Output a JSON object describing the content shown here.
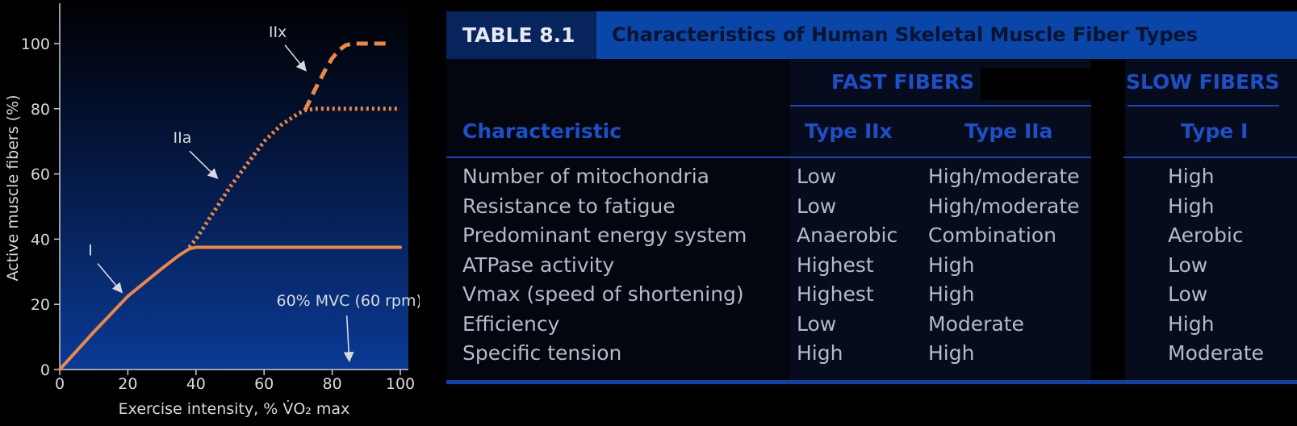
{
  "chart_data": {
    "type": "line",
    "xlabel": "Exercise intensity, % V̇O₂ max",
    "ylabel": "Active muscle fibers (%)",
    "xlim": [
      0,
      100
    ],
    "ylim": [
      0,
      100
    ],
    "x_ticks": [
      "0",
      "20",
      "40",
      "60",
      "80",
      "100"
    ],
    "y_ticks": [
      "0",
      "20",
      "40",
      "60",
      "80",
      "100"
    ],
    "grid": false,
    "series": [
      {
        "name": "I",
        "style": "solid",
        "x": [
          0,
          10,
          20,
          30,
          35,
          38,
          40,
          60,
          80,
          100
        ],
        "y": [
          0,
          11.5,
          22.5,
          31,
          35,
          37,
          37.5,
          37.5,
          37.5,
          37.5
        ]
      },
      {
        "name": "IIa",
        "style": "dotted",
        "x": [
          38,
          40,
          45,
          50,
          55,
          60,
          65,
          70,
          72,
          75,
          80,
          85,
          90,
          95,
          100
        ],
        "y": [
          37.5,
          40,
          48,
          56,
          63,
          70,
          75,
          78.5,
          79.5,
          80,
          80,
          80,
          80,
          80,
          80
        ]
      },
      {
        "name": "IIx",
        "style": "dashed",
        "x": [
          72,
          75,
          78,
          80,
          82,
          84,
          86,
          90,
          95,
          97
        ],
        "y": [
          79.5,
          86,
          92,
          95.5,
          98,
          99.5,
          100,
          100,
          100,
          100
        ]
      }
    ],
    "annotations": [
      {
        "text": "I",
        "x": 9,
        "y": 35,
        "arrow_to": [
          18,
          24
        ]
      },
      {
        "text": "IIa",
        "x": 36,
        "y": 69.5,
        "arrow_to": [
          46,
          59
        ]
      },
      {
        "text": "IIx",
        "x": 64,
        "y": 102,
        "arrow_to": [
          72,
          92
        ]
      },
      {
        "text": "60% MVC (60 rpm)",
        "x": 85,
        "y": 19.5,
        "arrow_to": [
          85,
          3
        ]
      }
    ],
    "colors": {
      "line": "#e8894c",
      "bg_top": "#000000",
      "bg_bottom": "#0a3a95",
      "axis": "#c8ccd6",
      "text": "#d6d9e0"
    }
  },
  "table": {
    "badge": "TABLE 8.1",
    "title": "Characteristics of Human Skeletal Muscle Fiber Types",
    "group_fast": "FAST FIBERS",
    "group_slow": "SLOW FIBERS",
    "col_characteristic": "Characteristic",
    "col_iix": "Type IIx",
    "col_iia": "Type IIa",
    "col_i": "Type I",
    "rows": [
      {
        "characteristic": "Number of mitochondria",
        "iix": "Low",
        "iia": "High/moderate",
        "i": "High"
      },
      {
        "characteristic": "Resistance to fatigue",
        "iix": "Low",
        "iia": "High/moderate",
        "i": "High"
      },
      {
        "characteristic": "Predominant energy system",
        "iix": "Anaerobic",
        "iia": "Combination",
        "i": "Aerobic"
      },
      {
        "characteristic": "ATPase activity",
        "iix": "Highest",
        "iia": "High",
        "i": "Low"
      },
      {
        "characteristic": "Vmax (speed of shortening)",
        "iix": "Highest",
        "iia": "High",
        "i": "Low"
      },
      {
        "characteristic": "Efficiency",
        "iix": "Low",
        "iia": "Moderate",
        "i": "High"
      },
      {
        "characteristic": "Specific tension",
        "iix": "High",
        "iia": "High",
        "i": "Moderate"
      }
    ]
  }
}
